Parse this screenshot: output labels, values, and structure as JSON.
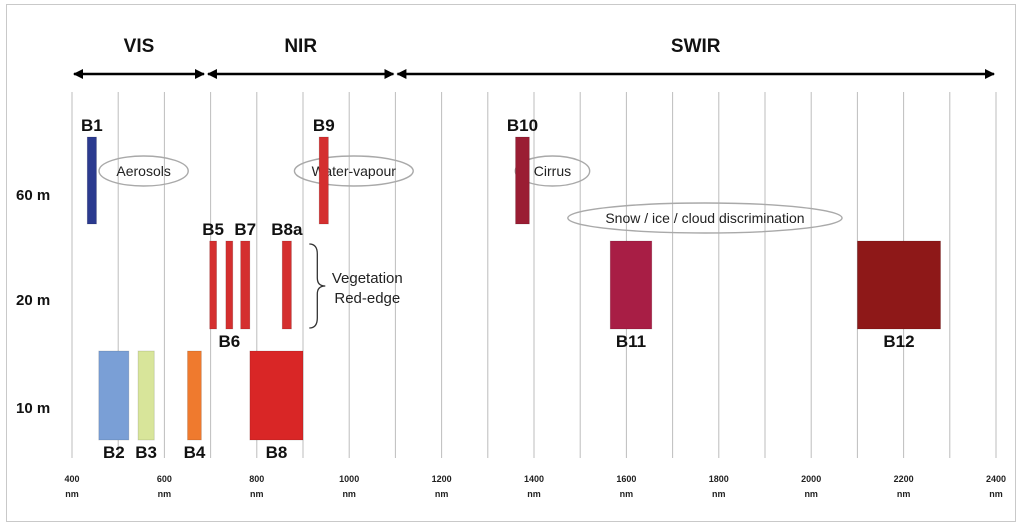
{
  "chart_data": {
    "type": "bar",
    "x_axis": {
      "min": 400,
      "max": 2400,
      "step": 100,
      "tick_values": [
        400,
        600,
        800,
        1000,
        1200,
        1400,
        1600,
        1800,
        2000,
        2200,
        2400
      ],
      "unit": "nm"
    },
    "rows": [
      {
        "label": "60 m",
        "level": 0
      },
      {
        "label": "20 m",
        "level": 1
      },
      {
        "label": "10 m",
        "level": 2
      }
    ],
    "ranges": [
      {
        "label": "VIS",
        "from": 400,
        "to": 690
      },
      {
        "label": "NIR",
        "from": 690,
        "to": 1100
      },
      {
        "label": "SWIR",
        "from": 1100,
        "to": 2400
      }
    ],
    "bands": [
      {
        "name": "B1",
        "from": 433,
        "to": 453,
        "resolution": "60 m",
        "color": "#2b3a8f",
        "label_pos": "above"
      },
      {
        "name": "B9",
        "from": 935,
        "to": 955,
        "resolution": "60 m",
        "color": "#d42f2f",
        "label_pos": "above"
      },
      {
        "name": "B10",
        "from": 1360,
        "to": 1390,
        "resolution": "60 m",
        "color": "#9a1d33",
        "label_pos": "above"
      },
      {
        "name": "B5",
        "from": 698,
        "to": 713,
        "resolution": "20 m",
        "color": "#d42f2f",
        "label_pos": "above"
      },
      {
        "name": "B6",
        "from": 733,
        "to": 748,
        "resolution": "20 m",
        "color": "#d42f2f",
        "label_pos": "below"
      },
      {
        "name": "B7",
        "from": 765,
        "to": 785,
        "resolution": "20 m",
        "color": "#d42f2f",
        "label_pos": "above"
      },
      {
        "name": "B8a",
        "from": 855,
        "to": 875,
        "resolution": "20 m",
        "color": "#d42f2f",
        "label_pos": "above"
      },
      {
        "name": "B11",
        "from": 1565,
        "to": 1655,
        "resolution": "20 m",
        "color": "#a81e45",
        "label_pos": "below"
      },
      {
        "name": "B12",
        "from": 2100,
        "to": 2280,
        "resolution": "20 m",
        "color": "#8e1818",
        "label_pos": "below"
      },
      {
        "name": "B2",
        "from": 458,
        "to": 523,
        "resolution": "10 m",
        "color": "#7a9fd6",
        "label_pos": "below"
      },
      {
        "name": "B3",
        "from": 543,
        "to": 578,
        "resolution": "10 m",
        "color": "#d8e59a",
        "label_pos": "below"
      },
      {
        "name": "B4",
        "from": 650,
        "to": 680,
        "resolution": "10 m",
        "color": "#ef7a2e",
        "label_pos": "below"
      },
      {
        "name": "B8",
        "from": 785,
        "to": 900,
        "resolution": "10 m",
        "color": "#d92626",
        "label_pos": "below"
      }
    ],
    "annotations": [
      {
        "text": "Aerosols",
        "center": 555,
        "level": 0
      },
      {
        "text": "Water-vapour",
        "center": 1010,
        "level": 0
      },
      {
        "text": "Cirrus",
        "center": 1440,
        "level": 0
      },
      {
        "text": "Snow / ice / cloud discrimination",
        "center": 1770,
        "level": 0.5
      }
    ],
    "brace_note": {
      "lines": [
        "Vegetation",
        "Red-edge"
      ]
    },
    "grid": true
  }
}
